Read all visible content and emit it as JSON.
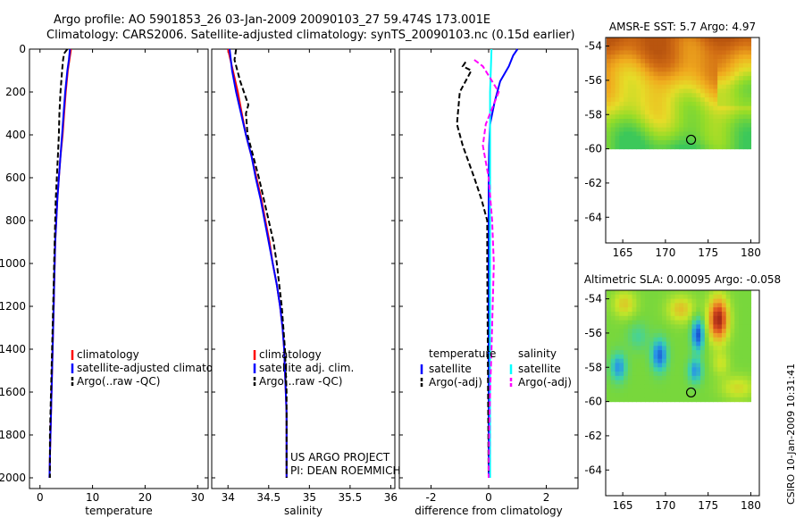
{
  "header": {
    "title_line1": "Argo profile: AO 5901853_26 03-Jan-2009 20090103_27 59.474S 173.001E",
    "title_line2": "Climatology: CARS2006. Satellite-adjusted climatology: synTS_20090103.nc (0.15d earlier)"
  },
  "footer_stamp": "CSIRO 10-Jan-2009 10:31:41",
  "chart_data": [
    {
      "id": "temperature",
      "type": "line",
      "xlabel": "temperature",
      "ylabel": "",
      "xlim": [
        -2,
        32
      ],
      "ylim": [
        2050,
        0
      ],
      "xticks": [
        0,
        10,
        20,
        30
      ],
      "yticks": [
        0,
        200,
        400,
        600,
        800,
        1000,
        1200,
        1400,
        1600,
        1800,
        2000
      ],
      "legend": [
        "climatology",
        "satellite-adjusted climatology",
        "Argo(..raw -QC)"
      ],
      "series": [
        {
          "name": "climatology",
          "color": "#ff0000",
          "style": "solid",
          "points": [
            [
              5.9,
              0
            ],
            [
              5.6,
              50
            ],
            [
              5.3,
              100
            ],
            [
              4.9,
              200
            ],
            [
              4.6,
              300
            ],
            [
              4.3,
              400
            ],
            [
              3.9,
              500
            ],
            [
              3.6,
              600
            ],
            [
              3.3,
              700
            ],
            [
              3.1,
              800
            ],
            [
              2.9,
              900
            ],
            [
              2.8,
              1000
            ],
            [
              2.7,
              1100
            ],
            [
              2.6,
              1200
            ],
            [
              2.5,
              1300
            ],
            [
              2.4,
              1400
            ],
            [
              2.3,
              1500
            ],
            [
              2.2,
              1600
            ],
            [
              2.1,
              1700
            ],
            [
              2.0,
              1800
            ],
            [
              1.9,
              1900
            ],
            [
              1.8,
              2000
            ]
          ]
        },
        {
          "name": "satellite-adjusted climatology",
          "color": "#0000ff",
          "style": "solid",
          "points": [
            [
              5.7,
              0
            ],
            [
              5.5,
              50
            ],
            [
              5.2,
              100
            ],
            [
              4.8,
              200
            ],
            [
              4.5,
              300
            ],
            [
              4.2,
              400
            ],
            [
              3.9,
              500
            ],
            [
              3.6,
              600
            ],
            [
              3.3,
              700
            ],
            [
              3.1,
              800
            ],
            [
              2.9,
              900
            ],
            [
              2.8,
              1000
            ],
            [
              2.7,
              1100
            ],
            [
              2.6,
              1200
            ],
            [
              2.5,
              1300
            ],
            [
              2.4,
              1400
            ],
            [
              2.3,
              1500
            ],
            [
              2.2,
              1600
            ],
            [
              2.1,
              1700
            ],
            [
              2.0,
              1800
            ],
            [
              1.9,
              1900
            ],
            [
              1.8,
              2000
            ]
          ]
        },
        {
          "name": "Argo(..raw -QC)",
          "color": "#000000",
          "style": "dashed",
          "points": [
            [
              5.2,
              0
            ],
            [
              4.6,
              20
            ],
            [
              4.4,
              50
            ],
            [
              4.2,
              100
            ],
            [
              3.9,
              200
            ],
            [
              3.7,
              300
            ],
            [
              3.6,
              400
            ],
            [
              3.4,
              500
            ],
            [
              3.2,
              600
            ],
            [
              3.0,
              700
            ],
            [
              2.9,
              800
            ],
            [
              2.8,
              900
            ],
            [
              2.7,
              1000
            ],
            [
              2.6,
              1100
            ],
            [
              2.5,
              1200
            ],
            [
              2.4,
              1300
            ],
            [
              2.3,
              1400
            ],
            [
              2.2,
              1500
            ],
            [
              2.1,
              1600
            ],
            [
              2.0,
              1700
            ],
            [
              1.9,
              1800
            ],
            [
              1.9,
              1900
            ],
            [
              1.9,
              2000
            ]
          ]
        }
      ],
      "annotations": []
    },
    {
      "id": "salinity",
      "type": "line",
      "xlabel": "salinity",
      "ylabel": "",
      "xlim": [
        33.8,
        36.05
      ],
      "ylim": [
        2050,
        0
      ],
      "xticks": [
        34,
        34.5,
        35,
        35.5,
        36
      ],
      "yticks": [
        0,
        200,
        400,
        600,
        800,
        1000,
        1200,
        1400,
        1600,
        1800,
        2000
      ],
      "legend": [
        "climatology",
        "satellite adj. clim.",
        "Argo(..raw -QC)"
      ],
      "series": [
        {
          "name": "climatology",
          "color": "#ff0000",
          "style": "solid",
          "points": [
            [
              34.0,
              0
            ],
            [
              34.06,
              100
            ],
            [
              34.12,
              200
            ],
            [
              34.17,
              300
            ],
            [
              34.22,
              400
            ],
            [
              34.29,
              500
            ],
            [
              34.35,
              600
            ],
            [
              34.41,
              700
            ],
            [
              34.46,
              800
            ],
            [
              34.51,
              900
            ],
            [
              34.55,
              1000
            ],
            [
              34.6,
              1100
            ],
            [
              34.64,
              1200
            ],
            [
              34.67,
              1300
            ],
            [
              34.69,
              1400
            ],
            [
              34.7,
              1500
            ],
            [
              34.71,
              1600
            ],
            [
              34.72,
              1700
            ],
            [
              34.72,
              1800
            ],
            [
              34.72,
              2000
            ]
          ]
        },
        {
          "name": "satellite adj. clim.",
          "color": "#0000ff",
          "style": "solid",
          "points": [
            [
              34.02,
              0
            ],
            [
              34.05,
              100
            ],
            [
              34.1,
              200
            ],
            [
              34.16,
              300
            ],
            [
              34.22,
              400
            ],
            [
              34.29,
              500
            ],
            [
              34.34,
              600
            ],
            [
              34.4,
              700
            ],
            [
              34.45,
              800
            ],
            [
              34.5,
              900
            ],
            [
              34.55,
              1000
            ],
            [
              34.6,
              1100
            ],
            [
              34.64,
              1200
            ],
            [
              34.67,
              1300
            ],
            [
              34.69,
              1400
            ],
            [
              34.7,
              1500
            ],
            [
              34.71,
              1600
            ],
            [
              34.72,
              1700
            ],
            [
              34.72,
              1800
            ],
            [
              34.72,
              2000
            ]
          ]
        },
        {
          "name": "Argo(..raw -QC)",
          "color": "#000000",
          "style": "dashed",
          "points": [
            [
              34.1,
              0
            ],
            [
              34.08,
              50
            ],
            [
              34.15,
              150
            ],
            [
              34.25,
              260
            ],
            [
              34.22,
              300
            ],
            [
              34.24,
              400
            ],
            [
              34.31,
              500
            ],
            [
              34.38,
              600
            ],
            [
              34.44,
              700
            ],
            [
              34.5,
              800
            ],
            [
              34.56,
              900
            ],
            [
              34.6,
              1000
            ],
            [
              34.63,
              1100
            ],
            [
              34.66,
              1200
            ],
            [
              34.68,
              1300
            ],
            [
              34.7,
              1400
            ],
            [
              34.71,
              1500
            ],
            [
              34.72,
              1600
            ],
            [
              34.72,
              1700
            ],
            [
              34.72,
              1800
            ],
            [
              34.72,
              2000
            ]
          ]
        }
      ],
      "annotations": [
        "US ARGO PROJECT",
        "PI: DEAN ROEMMICH"
      ]
    },
    {
      "id": "difference",
      "type": "line",
      "xlabel": "difference from climatology",
      "ylabel": "",
      "xlim": [
        -3.1,
        3.1
      ],
      "ylim": [
        2050,
        0
      ],
      "xticks": [
        -2,
        0,
        2
      ],
      "yticks": [
        0,
        200,
        400,
        600,
        800,
        1000,
        1200,
        1400,
        1600,
        1800,
        2000
      ],
      "legend_groups": [
        {
          "heading": "temperature",
          "items": [
            "satellite",
            "Argo(-adj)"
          ]
        },
        {
          "heading": "salinity",
          "items": [
            "satellite",
            "Argo(-adj)"
          ]
        }
      ],
      "series": [
        {
          "name": "temperature satellite",
          "color": "#0000ff",
          "style": "solid",
          "points": [
            [
              1.0,
              0
            ],
            [
              0.85,
              30
            ],
            [
              0.7,
              80
            ],
            [
              0.4,
              150
            ],
            [
              0.2,
              250
            ],
            [
              0.05,
              350
            ],
            [
              0.02,
              450
            ],
            [
              0.0,
              600
            ],
            [
              0.0,
              2000
            ]
          ]
        },
        {
          "name": "salinity satellite",
          "color": "#00ffff",
          "style": "solid",
          "points": [
            [
              0.1,
              0
            ],
            [
              0.05,
              200
            ],
            [
              0.05,
              500
            ],
            [
              0.05,
              1000
            ],
            [
              0.05,
              2000
            ]
          ]
        },
        {
          "name": "temperature Argo(-adj)",
          "color": "#000000",
          "style": "dashed",
          "points": [
            [
              -0.8,
              60
            ],
            [
              -0.9,
              80
            ],
            [
              -0.6,
              100
            ],
            [
              -1.0,
              200
            ],
            [
              -1.1,
              350
            ],
            [
              -0.9,
              450
            ],
            [
              -0.5,
              600
            ],
            [
              -0.25,
              700
            ],
            [
              -0.05,
              800
            ],
            [
              -0.05,
              1000
            ],
            [
              0.0,
              2000
            ]
          ]
        },
        {
          "name": "salinity Argo(-adj)",
          "color": "#ff00ff",
          "style": "dashed",
          "points": [
            [
              -0.5,
              50
            ],
            [
              -0.2,
              80
            ],
            [
              0.35,
              200
            ],
            [
              -0.1,
              350
            ],
            [
              -0.2,
              450
            ],
            [
              0.0,
              600
            ],
            [
              0.12,
              800
            ],
            [
              0.18,
              1000
            ],
            [
              0.14,
              1200
            ],
            [
              0.1,
              1400
            ],
            [
              0.05,
              1600
            ],
            [
              0.02,
              1800
            ],
            [
              0.0,
              2000
            ]
          ]
        }
      ],
      "annotations": []
    }
  ],
  "maps": [
    {
      "title": "AMSR-E SST: 5.7 Argo: 4.97",
      "type": "heatmap",
      "lon_ticks": [
        165,
        170,
        175,
        180
      ],
      "lat_ticks": [
        -54,
        -56,
        -58,
        -60,
        -62,
        -64
      ],
      "lon_range": [
        163,
        181
      ],
      "lat_range": [
        -65.5,
        -53.5
      ],
      "data_lat_range": [
        -60,
        -53.5
      ],
      "colormap": "sst",
      "marker": {
        "lon": 173.0,
        "lat": -59.47
      }
    },
    {
      "title": "Altimetric SLA: 0.00095 Argo: -0.058",
      "type": "heatmap",
      "lon_ticks": [
        165,
        170,
        175,
        180
      ],
      "lat_ticks": [
        -54,
        -56,
        -58,
        -60,
        -62,
        -64
      ],
      "lon_range": [
        163,
        181
      ],
      "lat_range": [
        -65.5,
        -53.5
      ],
      "data_lat_range": [
        -60,
        -53.5
      ],
      "colormap": "sla",
      "marker": {
        "lon": 173.0,
        "lat": -59.47
      }
    }
  ]
}
